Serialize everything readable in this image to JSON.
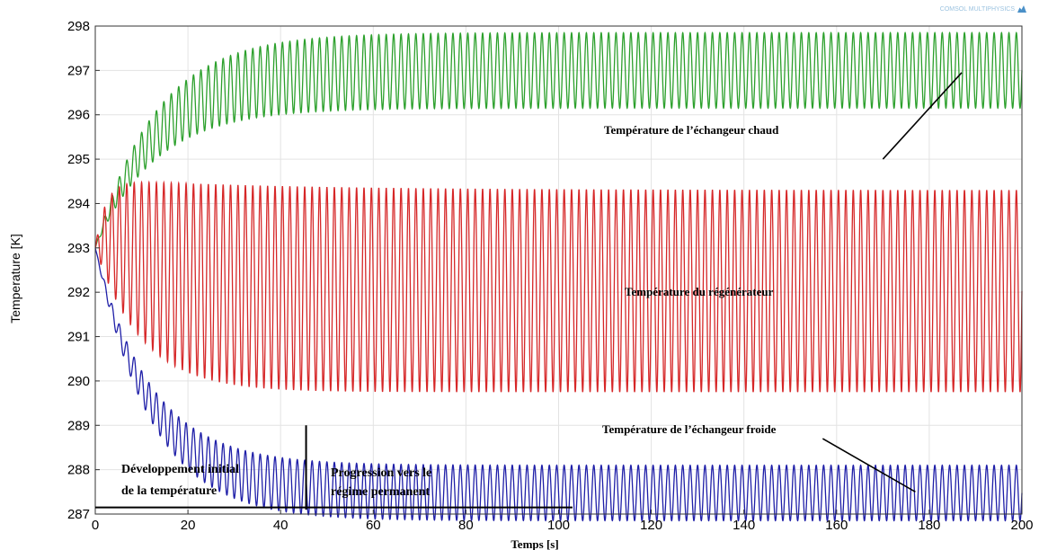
{
  "brand": {
    "watermark": "COMSOL MULTIPHYSICS"
  },
  "chart_data": {
    "type": "line",
    "xlabel": "Temps [s]",
    "ylabel": "Temperature [K]",
    "xlim": [
      0,
      200
    ],
    "ylim": [
      287,
      298
    ],
    "xticks": [
      0,
      20,
      40,
      60,
      80,
      100,
      120,
      140,
      160,
      180,
      200
    ],
    "yticks": [
      287,
      288,
      289,
      290,
      291,
      292,
      293,
      294,
      295,
      296,
      297,
      298
    ],
    "grid": true,
    "period_s": 1.6,
    "series": [
      {
        "color": "#2ca02c",
        "start": 293.0,
        "upper_final": 297.85,
        "lower_final": 296.15,
        "tau": 13
      },
      {
        "color": "#d62728",
        "start": 293.0,
        "upper_final": 294.3,
        "lower_final": 289.75,
        "tau": 10
      },
      {
        "color": "#1f1fa8",
        "start": 293.0,
        "upper_final": 288.1,
        "lower_final": 286.85,
        "tau": 12
      }
    ],
    "annotations": [
      {
        "text": "Température de l’échangeur chaud",
        "x": 187,
        "y": 296.95,
        "arrow_from": [
          170,
          295.0
        ]
      },
      {
        "text": "Température du régénérateur"
      },
      {
        "text": "Température de l’échangeur froide",
        "x": 177,
        "y": 287.5,
        "arrow_from": [
          157,
          288.7
        ]
      },
      {
        "text": [
          "Développement initial",
          "de la température"
        ]
      },
      {
        "text": [
          "Progression vers le",
          "régime permanent"
        ]
      }
    ],
    "markers": {
      "vertical_line_x": 45.5,
      "vertical_line_y": [
        287.1,
        289.0
      ],
      "baseline_y": 287.15,
      "baseline_x": [
        0,
        103
      ]
    }
  }
}
